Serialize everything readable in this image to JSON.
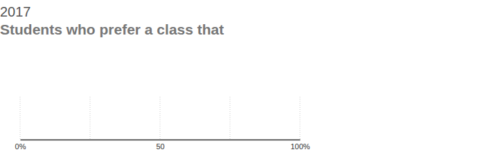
{
  "chart_data": {
    "type": "bar",
    "orientation": "horizontal",
    "title": "2017",
    "subtitle": "Students who prefer a class that",
    "categories": [],
    "values": [],
    "color": "#4a7fb5",
    "xlim": [
      0,
      100
    ],
    "xticks": [
      {
        "value": 0,
        "label": "0%"
      },
      {
        "value": 25,
        "label": null
      },
      {
        "value": 50,
        "label": "50"
      },
      {
        "value": 75,
        "label": null
      },
      {
        "value": 100,
        "label": "100%"
      }
    ],
    "grid": true
  }
}
